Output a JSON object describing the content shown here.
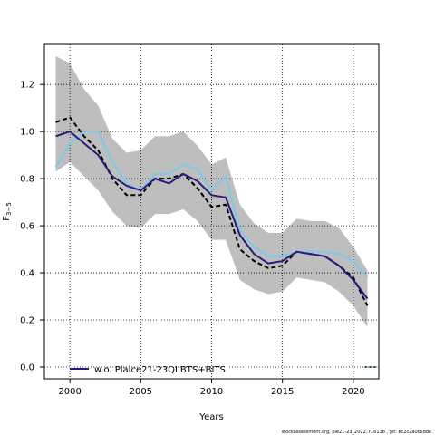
{
  "chart_data": {
    "type": "line",
    "xlabel": "Years",
    "ylabel_main": "F",
    "ylabel_sub": "3−5",
    "xlim": [
      1998.2,
      2021.8
    ],
    "ylim": [
      -0.05,
      1.37
    ],
    "x_ticks": [
      2000,
      2005,
      2010,
      2015,
      2020
    ],
    "y_ticks": [
      0.0,
      0.2,
      0.4,
      0.6,
      0.8,
      1.0,
      1.2
    ],
    "y_tick_labels": [
      "0.0",
      "0.2",
      "0.4",
      "0.6",
      "0.8",
      "1.0",
      "1.2"
    ],
    "grid": true,
    "legend_position": "bottom-left",
    "legend_label": "w.o. Plaice21-23QIIBTS+BITS",
    "x": [
      1999,
      2000,
      2001,
      2002,
      2003,
      2004,
      2005,
      2006,
      2007,
      2008,
      2009,
      2010,
      2011,
      2012,
      2013,
      2014,
      2015,
      2016,
      2017,
      2018,
      2019,
      2020,
      2021
    ],
    "band": {
      "upper": [
        1.32,
        1.29,
        1.18,
        1.11,
        0.97,
        0.91,
        0.92,
        0.98,
        0.98,
        1.0,
        0.94,
        0.86,
        0.89,
        0.69,
        0.61,
        0.57,
        0.57,
        0.63,
        0.62,
        0.62,
        0.59,
        0.51,
        0.41
      ],
      "lower": [
        0.83,
        0.87,
        0.81,
        0.75,
        0.66,
        0.6,
        0.59,
        0.65,
        0.65,
        0.67,
        0.62,
        0.54,
        0.54,
        0.37,
        0.33,
        0.31,
        0.32,
        0.38,
        0.37,
        0.36,
        0.32,
        0.26,
        0.17
      ],
      "color": "#bebebe"
    },
    "series": [
      {
        "role": "fitted-dashed",
        "color": "#000000",
        "values": [
          1.04,
          1.06,
          0.98,
          0.92,
          0.8,
          0.73,
          0.73,
          0.8,
          0.8,
          0.82,
          0.76,
          0.68,
          0.69,
          0.5,
          0.45,
          0.42,
          0.43,
          0.49,
          0.48,
          0.47,
          0.43,
          0.38,
          0.26
        ]
      },
      {
        "role": "light-blue",
        "color": "#7ec8e8",
        "values": [
          0.85,
          0.95,
          1.0,
          1.0,
          0.87,
          0.78,
          0.75,
          0.82,
          0.82,
          0.86,
          0.84,
          0.75,
          0.81,
          0.58,
          0.51,
          0.47,
          0.47,
          0.49,
          0.49,
          0.49,
          0.48,
          0.45,
          0.38
        ]
      },
      {
        "name": "w.o. Plaice21-23QIIBTS+BITS",
        "role": "retro",
        "color": "#2b1b7a",
        "values": [
          0.98,
          1.0,
          0.95,
          0.9,
          0.81,
          0.77,
          0.75,
          0.8,
          0.78,
          0.82,
          0.79,
          0.73,
          0.72,
          0.56,
          0.48,
          0.44,
          0.45,
          0.49,
          0.48,
          0.47,
          0.43,
          0.37,
          0.29
        ]
      }
    ],
    "tail_marker": {
      "x": [
        2020.8,
        2021.8
      ],
      "y": [
        0.0,
        0.0
      ]
    }
  },
  "footer": "stockassessment.org, ple21-23_2022, r16138 , git: ec2c2a0c6dde"
}
